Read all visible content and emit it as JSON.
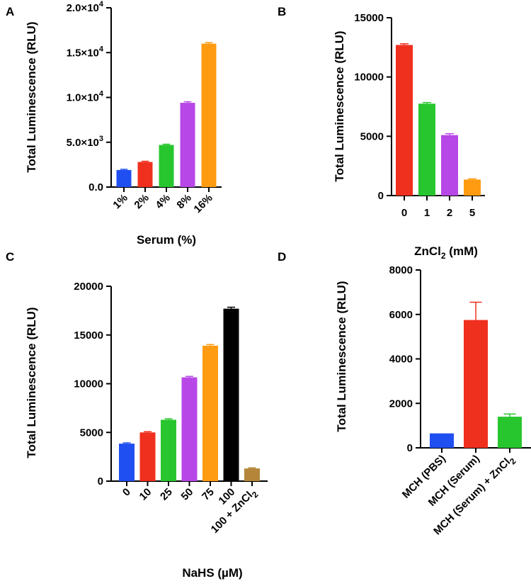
{
  "chart_data": [
    {
      "panel": "A",
      "type": "bar",
      "title": "",
      "xlabel": "Serum (%)",
      "ylabel": "Total Luminescence (RLU)",
      "ylim": [
        0,
        20000
      ],
      "yticks": [
        {
          "value": 0,
          "label": "0.0"
        },
        {
          "value": 5000,
          "label": "5.0×10",
          "sup": "3"
        },
        {
          "value": 10000,
          "label": "1.0×10",
          "sup": "4"
        },
        {
          "value": 15000,
          "label": "1.5×10",
          "sup": "4"
        },
        {
          "value": 20000,
          "label": "2.0×10",
          "sup": "4"
        }
      ],
      "categories": [
        "1%",
        "2%",
        "4%",
        "8%",
        "16%"
      ],
      "values": [
        1900,
        2800,
        4700,
        9400,
        16000
      ],
      "errors": [
        80,
        80,
        80,
        120,
        120
      ],
      "colors": [
        "#1f4ff0",
        "#f0301e",
        "#28c62e",
        "#b847e8",
        "#ff9b10"
      ]
    },
    {
      "panel": "B",
      "type": "bar",
      "title": "",
      "xlabel": "ZnCl",
      "xlabel_sub": "2",
      "xlabel_suffix": " (mM)",
      "ylabel": "Total Luminescence (RLU)",
      "ylim": [
        0,
        15000
      ],
      "yticks": [
        {
          "value": 0,
          "label": "0"
        },
        {
          "value": 5000,
          "label": "5000"
        },
        {
          "value": 10000,
          "label": "10000"
        },
        {
          "value": 15000,
          "label": "15000"
        }
      ],
      "categories": [
        "0",
        "1",
        "2",
        "5"
      ],
      "values": [
        12700,
        7750,
        5100,
        1350
      ],
      "errors": [
        100,
        100,
        120,
        60
      ],
      "colors": [
        "#f0301e",
        "#28c62e",
        "#b847e8",
        "#ff9b10"
      ]
    },
    {
      "panel": "C",
      "type": "bar",
      "title": "",
      "xlabel": "NaHS (µM)",
      "ylabel": "Total Luminescence (RLU)",
      "ylim": [
        0,
        20000
      ],
      "yticks": [
        {
          "value": 0,
          "label": "0"
        },
        {
          "value": 5000,
          "label": "5000"
        },
        {
          "value": 10000,
          "label": "10000"
        },
        {
          "value": 15000,
          "label": "15000"
        },
        {
          "value": 20000,
          "label": "20000"
        }
      ],
      "categories": [
        "0",
        "10",
        "25",
        "50",
        "75",
        "100",
        "100 + ZnCl"
      ],
      "category_subs": [
        "",
        "",
        "",
        "",
        "",
        "",
        "2"
      ],
      "values": [
        3850,
        5000,
        6300,
        10650,
        13900,
        17700,
        1300
      ],
      "errors": [
        80,
        80,
        100,
        100,
        120,
        150,
        60
      ],
      "colors": [
        "#1f4ff0",
        "#f0301e",
        "#28c62e",
        "#b847e8",
        "#ff9b10",
        "#000000",
        "#b5863a"
      ]
    },
    {
      "panel": "D",
      "type": "bar",
      "title": "",
      "xlabel": "",
      "ylabel": "Total Luminescence (RLU)",
      "ylim": [
        0,
        8000
      ],
      "yticks": [
        {
          "value": 0,
          "label": "0"
        },
        {
          "value": 2000,
          "label": "2000"
        },
        {
          "value": 4000,
          "label": "4000"
        },
        {
          "value": 6000,
          "label": "6000"
        },
        {
          "value": 8000,
          "label": "8000"
        }
      ],
      "categories": [
        "MCH (PBS)",
        "MCH (Serum)",
        "MCH (Serum) + ZnCl"
      ],
      "category_subs": [
        "",
        "",
        "2"
      ],
      "values": [
        650,
        5750,
        1400
      ],
      "errors": [
        0,
        800,
        120
      ],
      "colors": [
        "#1f4ff0",
        "#f0301e",
        "#28c62e"
      ]
    }
  ]
}
